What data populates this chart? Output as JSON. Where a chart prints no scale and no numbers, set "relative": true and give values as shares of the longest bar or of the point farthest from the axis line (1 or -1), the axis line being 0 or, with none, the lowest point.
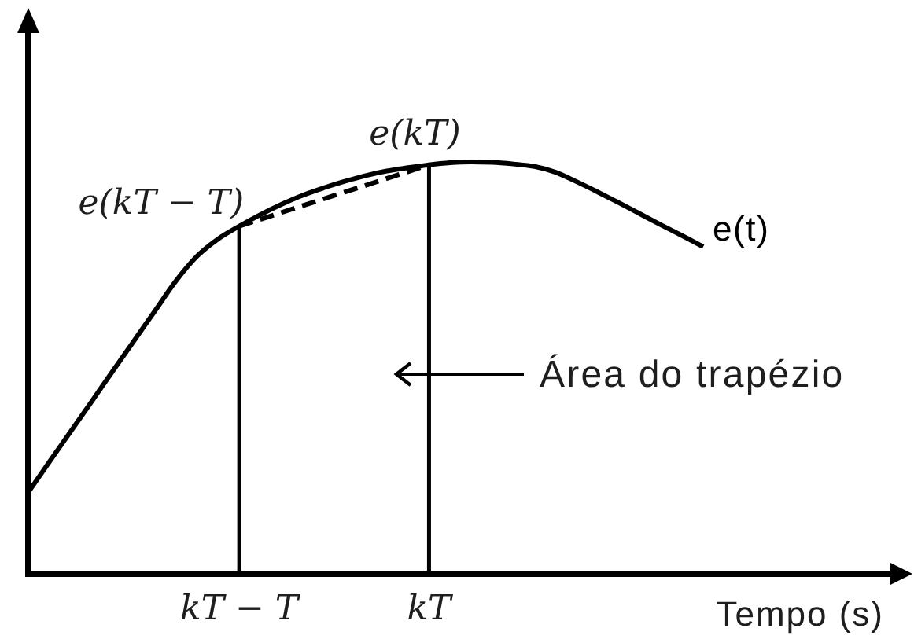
{
  "chart_data": {
    "type": "line",
    "relative": true,
    "xlabel": "Tempo (s)",
    "categories": [
      null,
      null,
      null,
      null,
      null,
      null,
      null,
      null,
      null,
      null,
      "kT − T",
      null,
      null,
      null,
      null,
      null,
      null,
      null,
      null,
      "kT",
      null,
      null,
      null,
      null,
      null,
      null,
      null,
      null,
      null,
      null,
      null,
      null,
      null
    ],
    "series": [
      {
        "name": "e(t)",
        "color": "#000000",
        "line_style": "solid",
        "values": [
          0.198,
          0.272,
          0.345,
          0.418,
          0.492,
          0.565,
          0.638,
          0.711,
          0.771,
          0.813,
          0.844,
          0.872,
          0.897,
          0.919,
          0.937,
          0.953,
          0.967,
          0.978,
          0.986,
          0.993,
          0.998,
          1,
          0.999,
          0.995,
          0.989,
          0.975,
          0.952,
          0.927,
          0.901,
          0.874,
          0.847,
          0.821,
          0.794
        ]
      },
      {
        "color": "#000000",
        "line_style": "dashed",
        "x": [
          "kT − T",
          "kT"
        ],
        "values": [
          0.844,
          0.993
        ]
      }
    ],
    "ref_lines": [
      {
        "axis": "x",
        "value": "kT − T"
      },
      {
        "axis": "x",
        "value": "kT"
      }
    ],
    "annotations": [
      {
        "text": "e(kT − T)",
        "x": "kT − T",
        "y": 0.844
      },
      {
        "text": "e(kT)",
        "x": "kT",
        "y": 0.993
      },
      "Área do trapézio"
    ]
  }
}
